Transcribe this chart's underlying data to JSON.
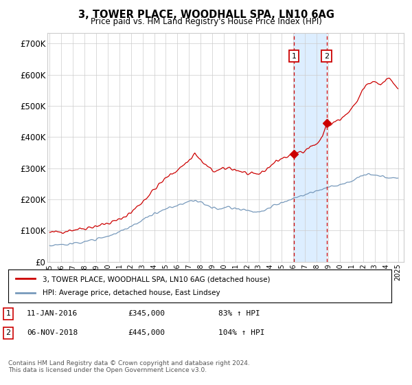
{
  "title": "3, TOWER PLACE, WOODHALL SPA, LN10 6AG",
  "subtitle": "Price paid vs. HM Land Registry's House Price Index (HPI)",
  "legend_line1": "3, TOWER PLACE, WOODHALL SPA, LN10 6AG (detached house)",
  "legend_line2": "HPI: Average price, detached house, East Lindsey",
  "annotation1_label": "1",
  "annotation1_date": "11-JAN-2016",
  "annotation1_price": "£345,000",
  "annotation1_hpi": "83% ↑ HPI",
  "annotation1_year": 2016.04,
  "annotation1_value": 345000,
  "annotation2_label": "2",
  "annotation2_date": "06-NOV-2018",
  "annotation2_price": "£445,000",
  "annotation2_hpi": "104% ↑ HPI",
  "annotation2_year": 2018.85,
  "annotation2_value": 445000,
  "yticks": [
    0,
    100000,
    200000,
    300000,
    400000,
    500000,
    600000,
    700000
  ],
  "ytick_labels": [
    "£0",
    "£100K",
    "£200K",
    "£300K",
    "£400K",
    "£500K",
    "£600K",
    "£700K"
  ],
  "xlim": [
    1994.8,
    2025.5
  ],
  "ylim": [
    0,
    735000
  ],
  "red_color": "#cc0000",
  "blue_color": "#7799bb",
  "marker_box_color": "#cc0000",
  "shade_color": "#ddeeff",
  "grid_color": "#cccccc",
  "footer_text": "Contains HM Land Registry data © Crown copyright and database right 2024.\nThis data is licensed under the Open Government Licence v3.0."
}
